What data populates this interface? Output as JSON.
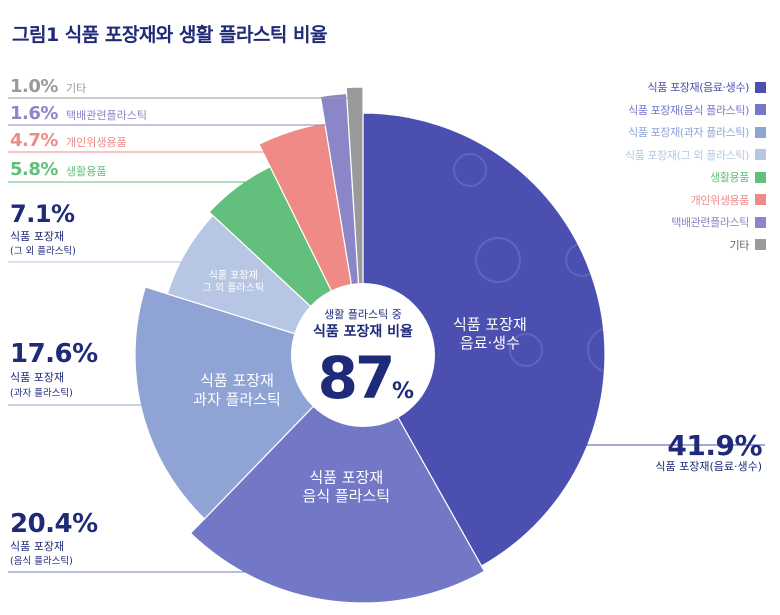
{
  "title": "그림1  식품 포장재와 생활 플라스틱 비율",
  "center": {
    "line1": "생활 플라스틱 중",
    "line2": "식품 포장재 비율",
    "value": "87",
    "unit": "%"
  },
  "colors": {
    "title": "#1f2a78",
    "label_text": "#1f2a78"
  },
  "chart_data": {
    "type": "pie",
    "title": "그림1  식품 포장재와 생활 플라스틱 비율",
    "slices": [
      {
        "key": "beverage",
        "legend": "식품 포장재(음료·생수)",
        "value": 41.9,
        "value_label": "41.9%",
        "label_line1": "식품 포장재",
        "label_line2": "(음료·생수)",
        "inner_line1": "식품 포장재",
        "inner_line2": "음료·생수",
        "color": "#4b4fb0"
      },
      {
        "key": "food",
        "legend": "식품 포장재(음식 플라스틱)",
        "value": 20.4,
        "value_label": "20.4%",
        "label_line1": "식품 포장재",
        "label_line2": "(음식 플라스틱)",
        "inner_line1": "식품 포장재",
        "inner_line2": "음식 플라스틱",
        "color": "#7277c6"
      },
      {
        "key": "snack",
        "legend": "식품 포장재(과자 플라스틱)",
        "value": 17.6,
        "value_label": "17.6%",
        "label_line1": "식품 포장재",
        "label_line2": "(과자 플라스틱)",
        "inner_line1": "식품 포장재",
        "inner_line2": "과자 플라스틱",
        "color": "#8fa3d4"
      },
      {
        "key": "other_food",
        "legend": "식품 포장재(그 외 플라스틱)",
        "value": 7.1,
        "value_label": "7.1%",
        "label_line1": "식품 포장재",
        "label_line2": "(그 외 플라스틱)",
        "inner_line1": "식품 포장재",
        "inner_line2": "그 외 플라스틱",
        "color": "#b6c6e3"
      },
      {
        "key": "household",
        "legend": "생활용품",
        "value": 5.8,
        "value_label": "5.8%",
        "label_line1": "생활용품",
        "label_line2": "",
        "inner_line1": "",
        "inner_line2": "",
        "color": "#62bf7c"
      },
      {
        "key": "personal",
        "legend": "개인위생용품",
        "value": 4.7,
        "value_label": "4.7%",
        "label_line1": "개인위생용품",
        "label_line2": "",
        "inner_line1": "",
        "inner_line2": "",
        "color": "#ef8a86"
      },
      {
        "key": "delivery",
        "legend": "택배관련플라스틱",
        "value": 1.6,
        "value_label": "1.6%",
        "label_line1": "택배관련플라스틱",
        "label_line2": "",
        "inner_line1": "",
        "inner_line2": "",
        "color": "#8b86c7"
      },
      {
        "key": "etc",
        "legend": "기타",
        "value": 1.0,
        "value_label": "1.0%",
        "label_line1": "기타",
        "label_line2": "",
        "inner_line1": "",
        "inner_line2": "",
        "color": "#9a9a9a"
      }
    ]
  }
}
